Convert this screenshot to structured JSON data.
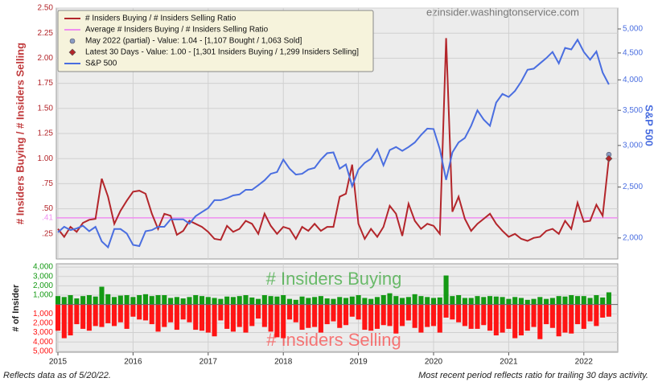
{
  "watermark": "ezinsider.washingtonservice.com",
  "footer": {
    "left": "Reflects data as of 5/20/22.",
    "right": "Most recent period reflects ratio for trailing 30 days activity."
  },
  "chart_data": [
    {
      "type": "line",
      "ylabel": "# Insiders Buying / # Insiders Selling",
      "y2label": "S&P 500",
      "ylim": [
        0,
        2.5
      ],
      "yticks": [
        {
          "value": 0.25,
          "label": ".25"
        },
        {
          "value": 0.5,
          "label": ".50"
        },
        {
          "value": 0.75,
          "label": ".75"
        },
        {
          "value": 1,
          "label": "1.00"
        },
        {
          "value": 1.25,
          "label": "1.25"
        },
        {
          "value": 1.5,
          "label": "1.50"
        },
        {
          "value": 1.75,
          "label": "1.75"
        },
        {
          "value": 2,
          "label": "2.00"
        },
        {
          "value": 2.25,
          "label": "2.25"
        },
        {
          "value": 2.5,
          "label": "2.50"
        }
      ],
      "y2lim": [
        1824,
        5480
      ],
      "y2scale": "log",
      "y2ticks": [
        {
          "value": 2000,
          "label": "2,000"
        },
        {
          "value": 2500,
          "label": "2,500"
        },
        {
          "value": 3000,
          "label": "3,000"
        },
        {
          "value": 3500,
          "label": "3,500"
        },
        {
          "value": 4000,
          "label": "4,000"
        },
        {
          "value": 4500,
          "label": "4,500"
        },
        {
          "value": 5000,
          "label": "5,000"
        }
      ],
      "grid": true,
      "legend": "upper left",
      "series": [
        {
          "name": "# Insiders Buying / # Insiders Selling Ratio",
          "color": "#b3262b",
          "values": [
            0.3,
            0.22,
            0.32,
            0.27,
            0.36,
            0.39,
            0.4,
            0.8,
            0.62,
            0.35,
            0.48,
            0.58,
            0.67,
            0.68,
            0.65,
            0.45,
            0.3,
            0.45,
            0.43,
            0.24,
            0.28,
            0.38,
            0.35,
            0.32,
            0.27,
            0.2,
            0.19,
            0.33,
            0.27,
            0.3,
            0.38,
            0.35,
            0.25,
            0.45,
            0.33,
            0.25,
            0.32,
            0.3,
            0.2,
            0.32,
            0.28,
            0.35,
            0.28,
            0.32,
            0.32,
            0.62,
            0.65,
            0.94,
            0.35,
            0.2,
            0.3,
            0.22,
            0.32,
            0.53,
            0.45,
            0.23,
            0.55,
            0.38,
            0.3,
            0.35,
            0.33,
            0.25,
            2.2,
            0.47,
            0.62,
            0.4,
            0.28,
            0.35,
            0.4,
            0.45,
            0.35,
            0.28,
            0.22,
            0.25,
            0.2,
            0.18,
            0.21,
            0.22,
            0.28,
            0.3,
            0.25,
            0.38,
            0.3,
            0.56,
            0.37,
            0.38,
            0.54,
            0.43,
            1.0
          ]
        },
        {
          "name": "S&P 500",
          "color": "#4a6ee0",
          "axis": "y2",
          "values": [
            2050,
            2100,
            2070,
            2085,
            2110,
            2060,
            2100,
            1970,
            1920,
            2080,
            2080,
            2040,
            1940,
            1930,
            2060,
            2070,
            2100,
            2100,
            2170,
            2170,
            2170,
            2130,
            2200,
            2240,
            2280,
            2360,
            2360,
            2380,
            2410,
            2420,
            2470,
            2470,
            2520,
            2575,
            2650,
            2670,
            2820,
            2710,
            2640,
            2650,
            2700,
            2720,
            2820,
            2900,
            2910,
            2710,
            2760,
            2510,
            2700,
            2780,
            2830,
            2950,
            2750,
            2940,
            2980,
            2930,
            2980,
            3040,
            3140,
            3230,
            3225,
            2950,
            2580,
            2910,
            3040,
            3100,
            3270,
            3500,
            3360,
            3270,
            3620,
            3760,
            3710,
            3810,
            3970,
            4180,
            4200,
            4300,
            4400,
            4520,
            4300,
            4600,
            4570,
            4770,
            4520,
            4370,
            4530,
            4130,
            3920
          ]
        }
      ],
      "average": {
        "name": "Average # Insiders Buying / # Insiders Selling Ratio",
        "color": "#ef8ef0",
        "value": 0.41,
        "value_label": ".41"
      },
      "points": [
        {
          "name": "May 2022 (partial) - Value: 1.04 - [1,107 Bought / 1,063 Sold]",
          "color": "#8a9cc4",
          "shape": "circle",
          "value": 1.04
        },
        {
          "name": "Latest 30 Days - Value: 1.00 - [1,301 Insiders Buying / 1,299 Insiders Selling]",
          "color": "#b3262b",
          "shape": "diamond",
          "value": 1.0
        }
      ]
    },
    {
      "type": "bar",
      "ylabel": "# of Insider",
      "categories": [
        "2015",
        null,
        null,
        null,
        null,
        null,
        null,
        null,
        null,
        null,
        null,
        null,
        "2016",
        null,
        null,
        null,
        null,
        null,
        null,
        null,
        null,
        null,
        null,
        null,
        "2017",
        null,
        null,
        null,
        null,
        null,
        null,
        null,
        null,
        null,
        null,
        null,
        "2018",
        null,
        null,
        null,
        null,
        null,
        null,
        null,
        null,
        null,
        null,
        null,
        "2019",
        null,
        null,
        null,
        null,
        null,
        null,
        null,
        null,
        null,
        null,
        null,
        "2020",
        null,
        null,
        null,
        null,
        null,
        null,
        null,
        null,
        null,
        null,
        null,
        "2021",
        null,
        null,
        null,
        null,
        null,
        null,
        null,
        null,
        null,
        null,
        null,
        "2022",
        null,
        null,
        null,
        null
      ],
      "ylim": [
        -5100,
        4350
      ],
      "yticks": [
        {
          "value": 4000,
          "label": "4,000"
        },
        {
          "value": 3000,
          "label": "3,000"
        },
        {
          "value": 2000,
          "label": "2,000"
        },
        {
          "value": 1000,
          "label": "1,000"
        },
        {
          "value": -1000,
          "label": "1,000"
        },
        {
          "value": -2000,
          "label": "2,000"
        },
        {
          "value": -3000,
          "label": "3,000"
        },
        {
          "value": -4000,
          "label": "4,000"
        },
        {
          "value": -5000,
          "label": "5,000"
        }
      ],
      "series": [
        {
          "name": "# Insiders Buying",
          "color": "#159a15",
          "values": [
            900,
            800,
            1000,
            650,
            900,
            1000,
            850,
            1900,
            1100,
            800,
            950,
            1000,
            800,
            1000,
            1100,
            900,
            1000,
            1000,
            700,
            800,
            650,
            800,
            1000,
            900,
            800,
            700,
            600,
            850,
            800,
            900,
            1000,
            750,
            600,
            1000,
            900,
            850,
            1000,
            600,
            500,
            850,
            700,
            800,
            900,
            650,
            600,
            800,
            700,
            850,
            1000,
            700,
            600,
            800,
            1000,
            1200,
            900,
            700,
            800,
            1100,
            900,
            800,
            700,
            750,
            3100,
            900,
            1000,
            700,
            700,
            900,
            800,
            900,
            850,
            800,
            600,
            800,
            700,
            500,
            600,
            800,
            600,
            700,
            900,
            850,
            1000,
            900,
            900,
            700,
            1000,
            750,
            1300
          ]
        },
        {
          "name": "# Insiders Selling",
          "color": "#ff1414",
          "values": [
            -2800,
            -3600,
            -3300,
            -2100,
            -2600,
            -2800,
            -2300,
            -2400,
            -2000,
            -2300,
            -1900,
            -2600,
            -1300,
            -1600,
            -1700,
            -2100,
            -2900,
            -2400,
            -1900,
            -2700,
            -1600,
            -1900,
            -2700,
            -2800,
            -3000,
            -3400,
            -1700,
            -2600,
            -2900,
            -2400,
            -3000,
            -2300,
            -1500,
            -2400,
            -2900,
            -3500,
            -3600,
            -1600,
            -1900,
            -2700,
            -2500,
            -2400,
            -3000,
            -2100,
            -1800,
            -2500,
            -2200,
            -1300,
            -1600,
            -2700,
            -2800,
            -2600,
            -2200,
            -2300,
            -3100,
            -2300,
            -1700,
            -2500,
            -3000,
            -2400,
            -2300,
            -3000,
            -1400,
            -1600,
            -1900,
            -2300,
            -2600,
            -2600,
            -2200,
            -2800,
            -3300,
            -3000,
            -2600,
            -3600,
            -3300,
            -2800,
            -2400,
            -3700,
            -2100,
            -2500,
            -3400,
            -3000,
            -3100,
            -2100,
            -2600,
            -1800,
            -2300,
            -1400,
            -1300
          ]
        }
      ]
    }
  ]
}
